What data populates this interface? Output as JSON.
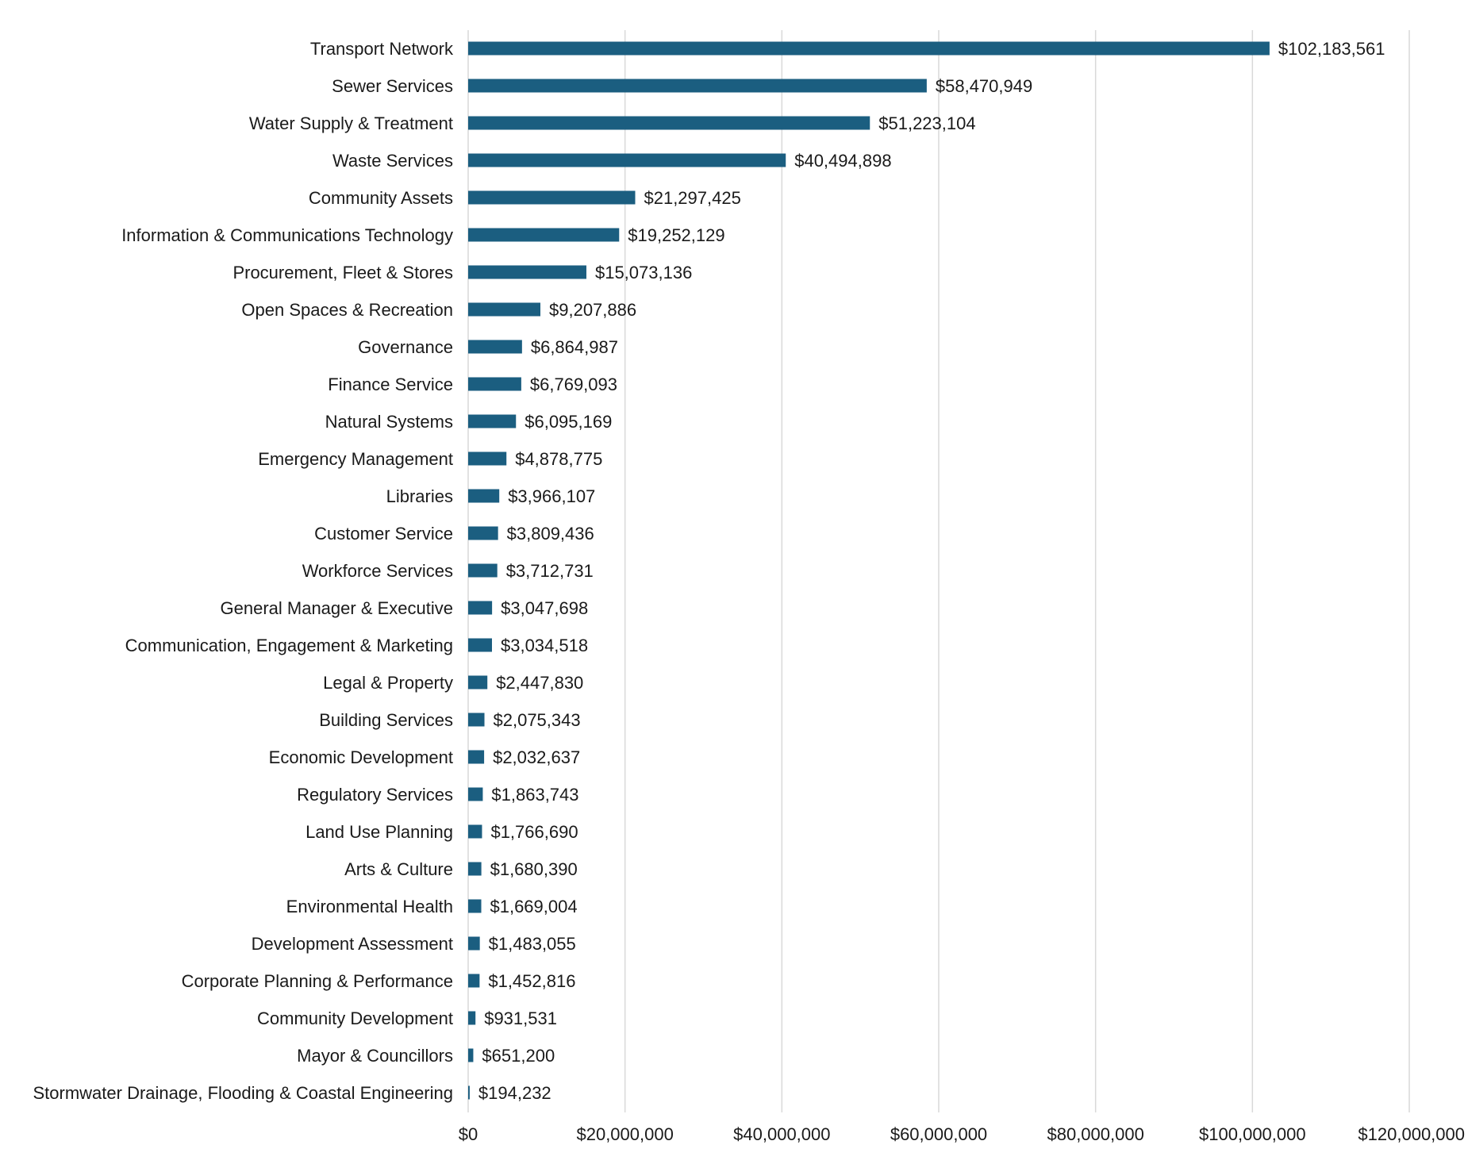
{
  "chart_data": {
    "type": "bar",
    "orientation": "horizontal",
    "title": "",
    "xlabel": "",
    "ylabel": "",
    "xlim": [
      0,
      120000000
    ],
    "grid": true,
    "bar_color": "#1b5e80",
    "categories": [
      "Transport Network",
      "Sewer Services",
      "Water Supply & Treatment",
      "Waste Services",
      "Community Assets",
      "Information & Communications Technology",
      "Procurement, Fleet & Stores",
      "Open Spaces & Recreation",
      "Governance",
      "Finance Service",
      "Natural Systems",
      "Emergency Management",
      "Libraries",
      "Customer Service",
      "Workforce Services",
      "General Manager & Executive",
      "Communication, Engagement & Marketing",
      "Legal & Property",
      "Building Services",
      "Economic Development",
      "Regulatory Services",
      "Land Use Planning",
      "Arts & Culture",
      "Environmental Health",
      "Development Assessment",
      "Corporate Planning & Performance",
      "Community Development",
      "Mayor & Councillors",
      "Stormwater Drainage, Flooding & Coastal Engineering"
    ],
    "values": [
      102183561,
      58470949,
      51223104,
      40494898,
      21297425,
      19252129,
      15073136,
      9207886,
      6864987,
      6769093,
      6095169,
      4878775,
      3966107,
      3809436,
      3712731,
      3047698,
      3034518,
      2447830,
      2075343,
      2032637,
      1863743,
      1766690,
      1680390,
      1669004,
      1483055,
      1452816,
      931531,
      651200,
      194232
    ],
    "value_labels": [
      "$102,183,561",
      "$58,470,949",
      "$51,223,104",
      "$40,494,898",
      "$21,297,425",
      "$19,252,129",
      "$15,073,136",
      "$9,207,886",
      "$6,864,987",
      "$6,769,093",
      "$6,095,169",
      "$4,878,775",
      "$3,966,107",
      "$3,809,436",
      "$3,712,731",
      "$3,047,698",
      "$3,034,518",
      "$2,447,830",
      "$2,075,343",
      "$2,032,637",
      "$1,863,743",
      "$1,766,690",
      "$1,680,390",
      "$1,669,004",
      "$1,483,055",
      "$1,452,816",
      "$931,531",
      "$651,200",
      "$194,232"
    ],
    "x_ticks": [
      0,
      20000000,
      40000000,
      60000000,
      80000000,
      100000000,
      120000000
    ],
    "x_tick_labels": [
      "$0",
      "$20,000,000",
      "$40,000,000",
      "$60,000,000",
      "$80,000,000",
      "$100,000,000",
      "$120,000,000"
    ]
  }
}
